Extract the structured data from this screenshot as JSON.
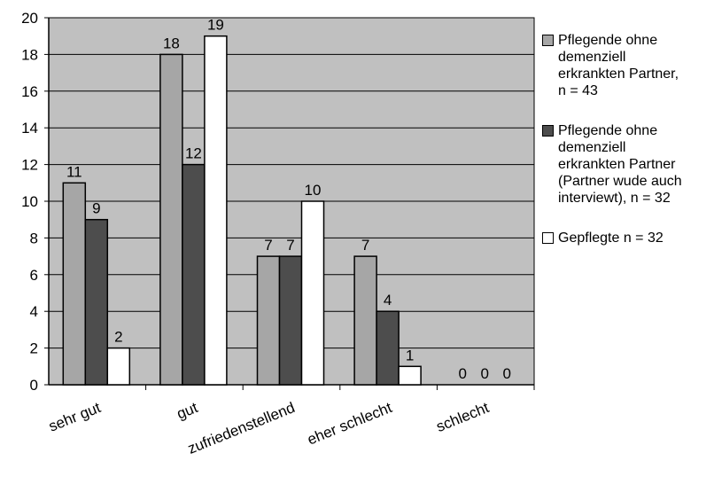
{
  "chart_data": {
    "type": "bar",
    "categories": [
      "sehr gut",
      "gut",
      "zufriedenstellend",
      "eher schlecht",
      "schlecht"
    ],
    "series": [
      {
        "name": "Pflegende ohne demenziell erkrankten Partner, n = 43",
        "values": [
          11,
          18,
          7,
          7,
          0
        ],
        "color": "#a6a6a6"
      },
      {
        "name": "Pflegende ohne demenziell erkrankten Partner (Partner wude auch interviewt), n = 32",
        "values": [
          9,
          12,
          7,
          4,
          0
        ],
        "color": "#4d4d4d"
      },
      {
        "name": "Gepflegte n = 32",
        "values": [
          2,
          19,
          10,
          1,
          0
        ],
        "color": "#ffffff"
      }
    ],
    "ylim": [
      0,
      20
    ],
    "yticks": [
      "0",
      "2",
      "4",
      "6",
      "8",
      "10",
      "12",
      "14",
      "16",
      "18",
      "20"
    ],
    "grid": true,
    "plot_background": "#c0c0c0",
    "legend_position": "right",
    "xlabel": "",
    "ylabel": "",
    "title": ""
  },
  "legend": {
    "items": [
      {
        "label": "Pflegende ohne\ndemenziell\nerkrankten Partner,\nn = 43",
        "color": "#a6a6a6"
      },
      {
        "label": "Pflegende ohne\ndemenziell\nerkrankten Partner\n(Partner wude auch\ninterviewt), n = 32",
        "color": "#4d4d4d"
      },
      {
        "label": "Gepflegte n = 32",
        "color": "#ffffff"
      }
    ]
  }
}
